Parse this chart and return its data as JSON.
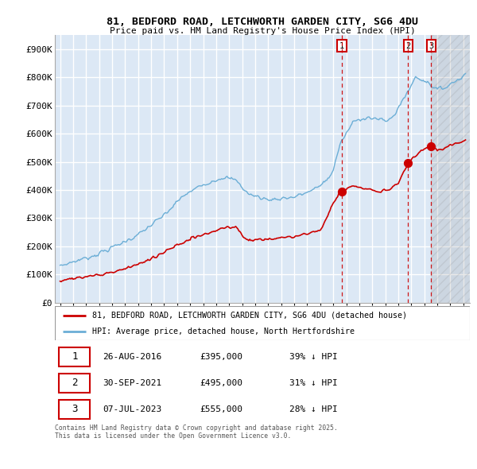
{
  "title": "81, BEDFORD ROAD, LETCHWORTH GARDEN CITY, SG6 4DU",
  "subtitle": "Price paid vs. HM Land Registry's House Price Index (HPI)",
  "legend_line1": "81, BEDFORD ROAD, LETCHWORTH GARDEN CITY, SG6 4DU (detached house)",
  "legend_line2": "HPI: Average price, detached house, North Hertfordshire",
  "sale1_date": "26-AUG-2016",
  "sale1_price": 395000,
  "sale1_hpi": "39%",
  "sale2_date": "30-SEP-2021",
  "sale2_price": 495000,
  "sale2_hpi": "31%",
  "sale3_date": "07-JUL-2023",
  "sale3_price": 555000,
  "sale3_hpi": "28%",
  "footnote": "Contains HM Land Registry data © Crown copyright and database right 2025.\nThis data is licensed under the Open Government Licence v3.0.",
  "hpi_color": "#6baed6",
  "price_color": "#cc0000",
  "sale_marker_color": "#cc0000",
  "vline_color": "#cc0000",
  "bg_color": "#dce8f5",
  "grid_color": "#ffffff",
  "ylim": [
    0,
    950000
  ],
  "sale1_x": 2016.65,
  "sale2_x": 2021.75,
  "sale3_x": 2023.52
}
